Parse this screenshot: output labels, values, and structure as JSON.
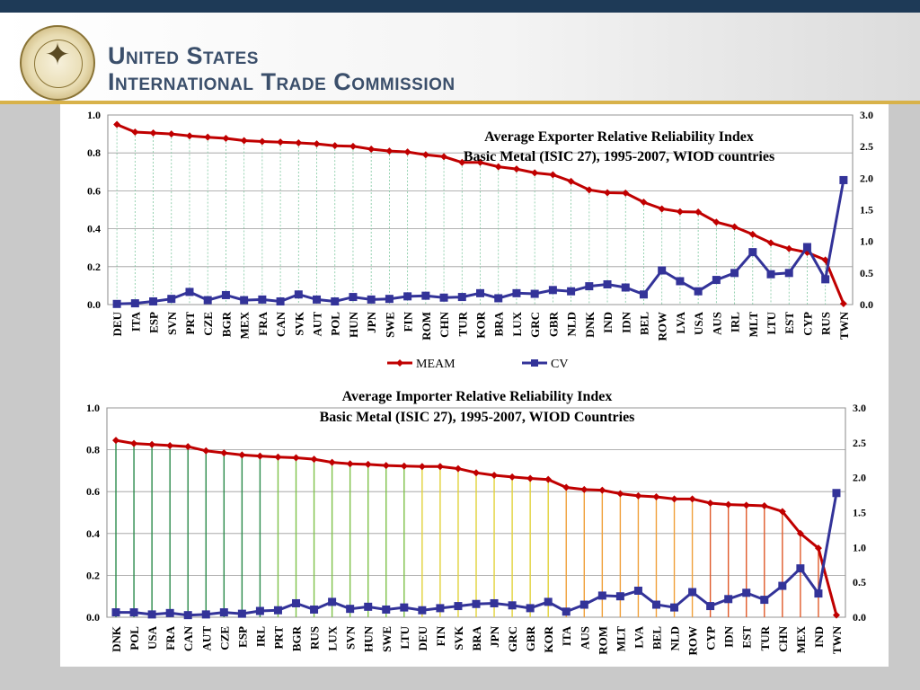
{
  "header": {
    "title_line1": "United States",
    "title_line2": "International Trade Commission",
    "logo_icon": "usitc-seal-icon"
  },
  "colors": {
    "top_band": "#1e3a57",
    "accent_line": "#d8b24a",
    "meam": "#c00000",
    "cv": "#333399"
  },
  "chart_data": [
    {
      "type": "line",
      "title": "Average Exporter Relative Reliability Index",
      "subtitle": "Basic Metal (ISIC 27), 1995-2007, WIOD countries",
      "legend": [
        "MEAM",
        "CV"
      ],
      "legend_position": "bottom",
      "ylim_left": [
        0,
        1.0
      ],
      "ylim_right": [
        0,
        3.0
      ],
      "yticks_left": [
        "0.0",
        "0.2",
        "0.4",
        "0.6",
        "0.8",
        "1.0"
      ],
      "yticks_right": [
        "0.0",
        "0.5",
        "1.0",
        "1.5",
        "2.0",
        "2.5",
        "3.0"
      ],
      "categories": [
        "DEU",
        "ITA",
        "ESP",
        "SVN",
        "PRT",
        "CZE",
        "BGR",
        "MEX",
        "FRA",
        "CAN",
        "SVK",
        "AUT",
        "POL",
        "HUN",
        "JPN",
        "SWE",
        "FIN",
        "ROM",
        "CHN",
        "TUR",
        "KOR",
        "BRA",
        "LUX",
        "GRC",
        "GBR",
        "NLD",
        "DNK",
        "IND",
        "IDN",
        "BEL",
        "ROW",
        "LVA",
        "USA",
        "AUS",
        "IRL",
        "MLT",
        "LTU",
        "EST",
        "CYP",
        "RUS",
        "TWN"
      ],
      "series": [
        {
          "name": "MEAM",
          "axis": "left",
          "values": [
            0.95,
            0.91,
            0.905,
            0.9,
            0.89,
            0.883,
            0.877,
            0.865,
            0.86,
            0.857,
            0.853,
            0.848,
            0.838,
            0.835,
            0.82,
            0.81,
            0.805,
            0.79,
            0.78,
            0.75,
            0.75,
            0.727,
            0.715,
            0.695,
            0.685,
            0.65,
            0.605,
            0.59,
            0.588,
            0.54,
            0.505,
            0.49,
            0.488,
            0.435,
            0.41,
            0.37,
            0.325,
            0.295,
            0.275,
            0.235,
            0.005
          ]
        },
        {
          "name": "CV",
          "axis": "right",
          "values": [
            0.01,
            0.02,
            0.05,
            0.09,
            0.2,
            0.07,
            0.15,
            0.07,
            0.08,
            0.05,
            0.16,
            0.08,
            0.05,
            0.12,
            0.08,
            0.09,
            0.13,
            0.14,
            0.11,
            0.12,
            0.18,
            0.1,
            0.18,
            0.17,
            0.23,
            0.21,
            0.29,
            0.32,
            0.27,
            0.16,
            0.54,
            0.37,
            0.21,
            0.39,
            0.5,
            0.83,
            0.48,
            0.5,
            0.91,
            0.4,
            1.97
          ]
        }
      ]
    },
    {
      "type": "line",
      "title": "Average Importer Relative Reliability Index",
      "subtitle": "Basic Metal (ISIC 27), 1995-2007, WIOD Countries",
      "ylim_left": [
        0,
        1.0
      ],
      "ylim_right": [
        0,
        3.0
      ],
      "yticks_left": [
        "0.0",
        "0.2",
        "0.4",
        "0.6",
        "0.8",
        "1.0"
      ],
      "yticks_right": [
        "0.0",
        "0.5",
        "1.0",
        "1.5",
        "2.0",
        "2.5",
        "3.0"
      ],
      "categories": [
        "DNK",
        "POL",
        "USA",
        "FRA",
        "CAN",
        "AUT",
        "CZE",
        "ESP",
        "IRL",
        "PRT",
        "BGR",
        "RUS",
        "LUX",
        "SVN",
        "HUN",
        "SWE",
        "LTU",
        "DEU",
        "FIN",
        "SVK",
        "BRA",
        "JPN",
        "GRC",
        "GBR",
        "KOR",
        "ITA",
        "AUS",
        "ROM",
        "MLT",
        "LVA",
        "BEL",
        "NLD",
        "ROW",
        "CYP",
        "IDN",
        "EST",
        "TUR",
        "CHN",
        "MEX",
        "IND",
        "TWN"
      ],
      "series": [
        {
          "name": "MEAM",
          "axis": "left",
          "values": [
            0.845,
            0.83,
            0.825,
            0.82,
            0.815,
            0.795,
            0.785,
            0.775,
            0.77,
            0.765,
            0.762,
            0.755,
            0.74,
            0.733,
            0.73,
            0.725,
            0.722,
            0.72,
            0.72,
            0.71,
            0.69,
            0.678,
            0.67,
            0.663,
            0.658,
            0.62,
            0.61,
            0.607,
            0.59,
            0.58,
            0.575,
            0.565,
            0.565,
            0.545,
            0.538,
            0.535,
            0.532,
            0.505,
            0.4,
            0.33,
            0.01
          ]
        },
        {
          "name": "CV",
          "axis": "right",
          "values": [
            0.07,
            0.07,
            0.04,
            0.06,
            0.03,
            0.04,
            0.07,
            0.05,
            0.09,
            0.1,
            0.2,
            0.11,
            0.22,
            0.12,
            0.15,
            0.11,
            0.14,
            0.1,
            0.13,
            0.16,
            0.19,
            0.2,
            0.17,
            0.13,
            0.22,
            0.08,
            0.18,
            0.31,
            0.3,
            0.38,
            0.18,
            0.14,
            0.36,
            0.16,
            0.26,
            0.35,
            0.25,
            0.45,
            0.7,
            0.34,
            1.78
          ]
        }
      ]
    }
  ]
}
